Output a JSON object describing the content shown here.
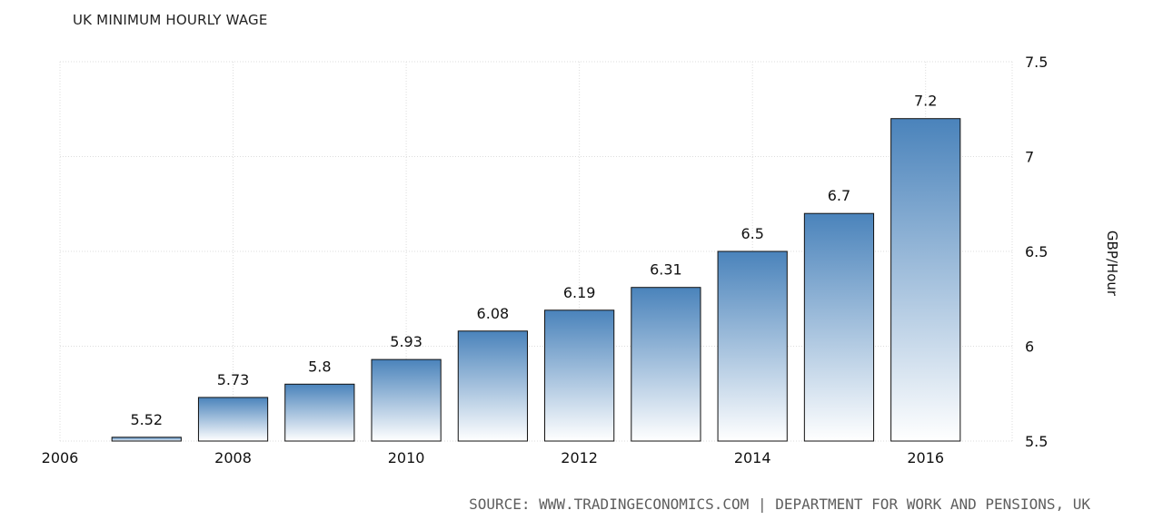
{
  "chart_data": {
    "type": "bar",
    "title": "UK MINIMUM HOURLY WAGE",
    "ylabel": "GBP/Hour",
    "xlabel": "",
    "categories": [
      2007,
      2008,
      2009,
      2010,
      2011,
      2012,
      2013,
      2014,
      2015,
      2016
    ],
    "values": [
      5.52,
      5.73,
      5.8,
      5.93,
      6.08,
      6.19,
      6.31,
      6.5,
      6.7,
      7.2
    ],
    "data_labels": [
      "5.52",
      "5.73",
      "5.8",
      "5.93",
      "6.08",
      "6.19",
      "6.31",
      "6.5",
      "6.7",
      "7.2"
    ],
    "ylim": [
      5.5,
      7.5
    ],
    "xlim": [
      2006,
      2017
    ],
    "y_ticks": [
      "5.5",
      "6",
      "6.5",
      "7",
      "7.5"
    ],
    "x_ticks": [
      "2006",
      "2008",
      "2010",
      "2012",
      "2014",
      "2016"
    ],
    "y_axis_side": "right",
    "grid": true,
    "colors": {
      "bar_top": "#4a83bb",
      "bar_bottom": "#ffffff",
      "bar_stroke": "#111111",
      "grid": "#dddddd"
    }
  },
  "source": "SOURCE: WWW.TRADINGECONOMICS.COM | DEPARTMENT FOR WORK AND PENSIONS, UK"
}
